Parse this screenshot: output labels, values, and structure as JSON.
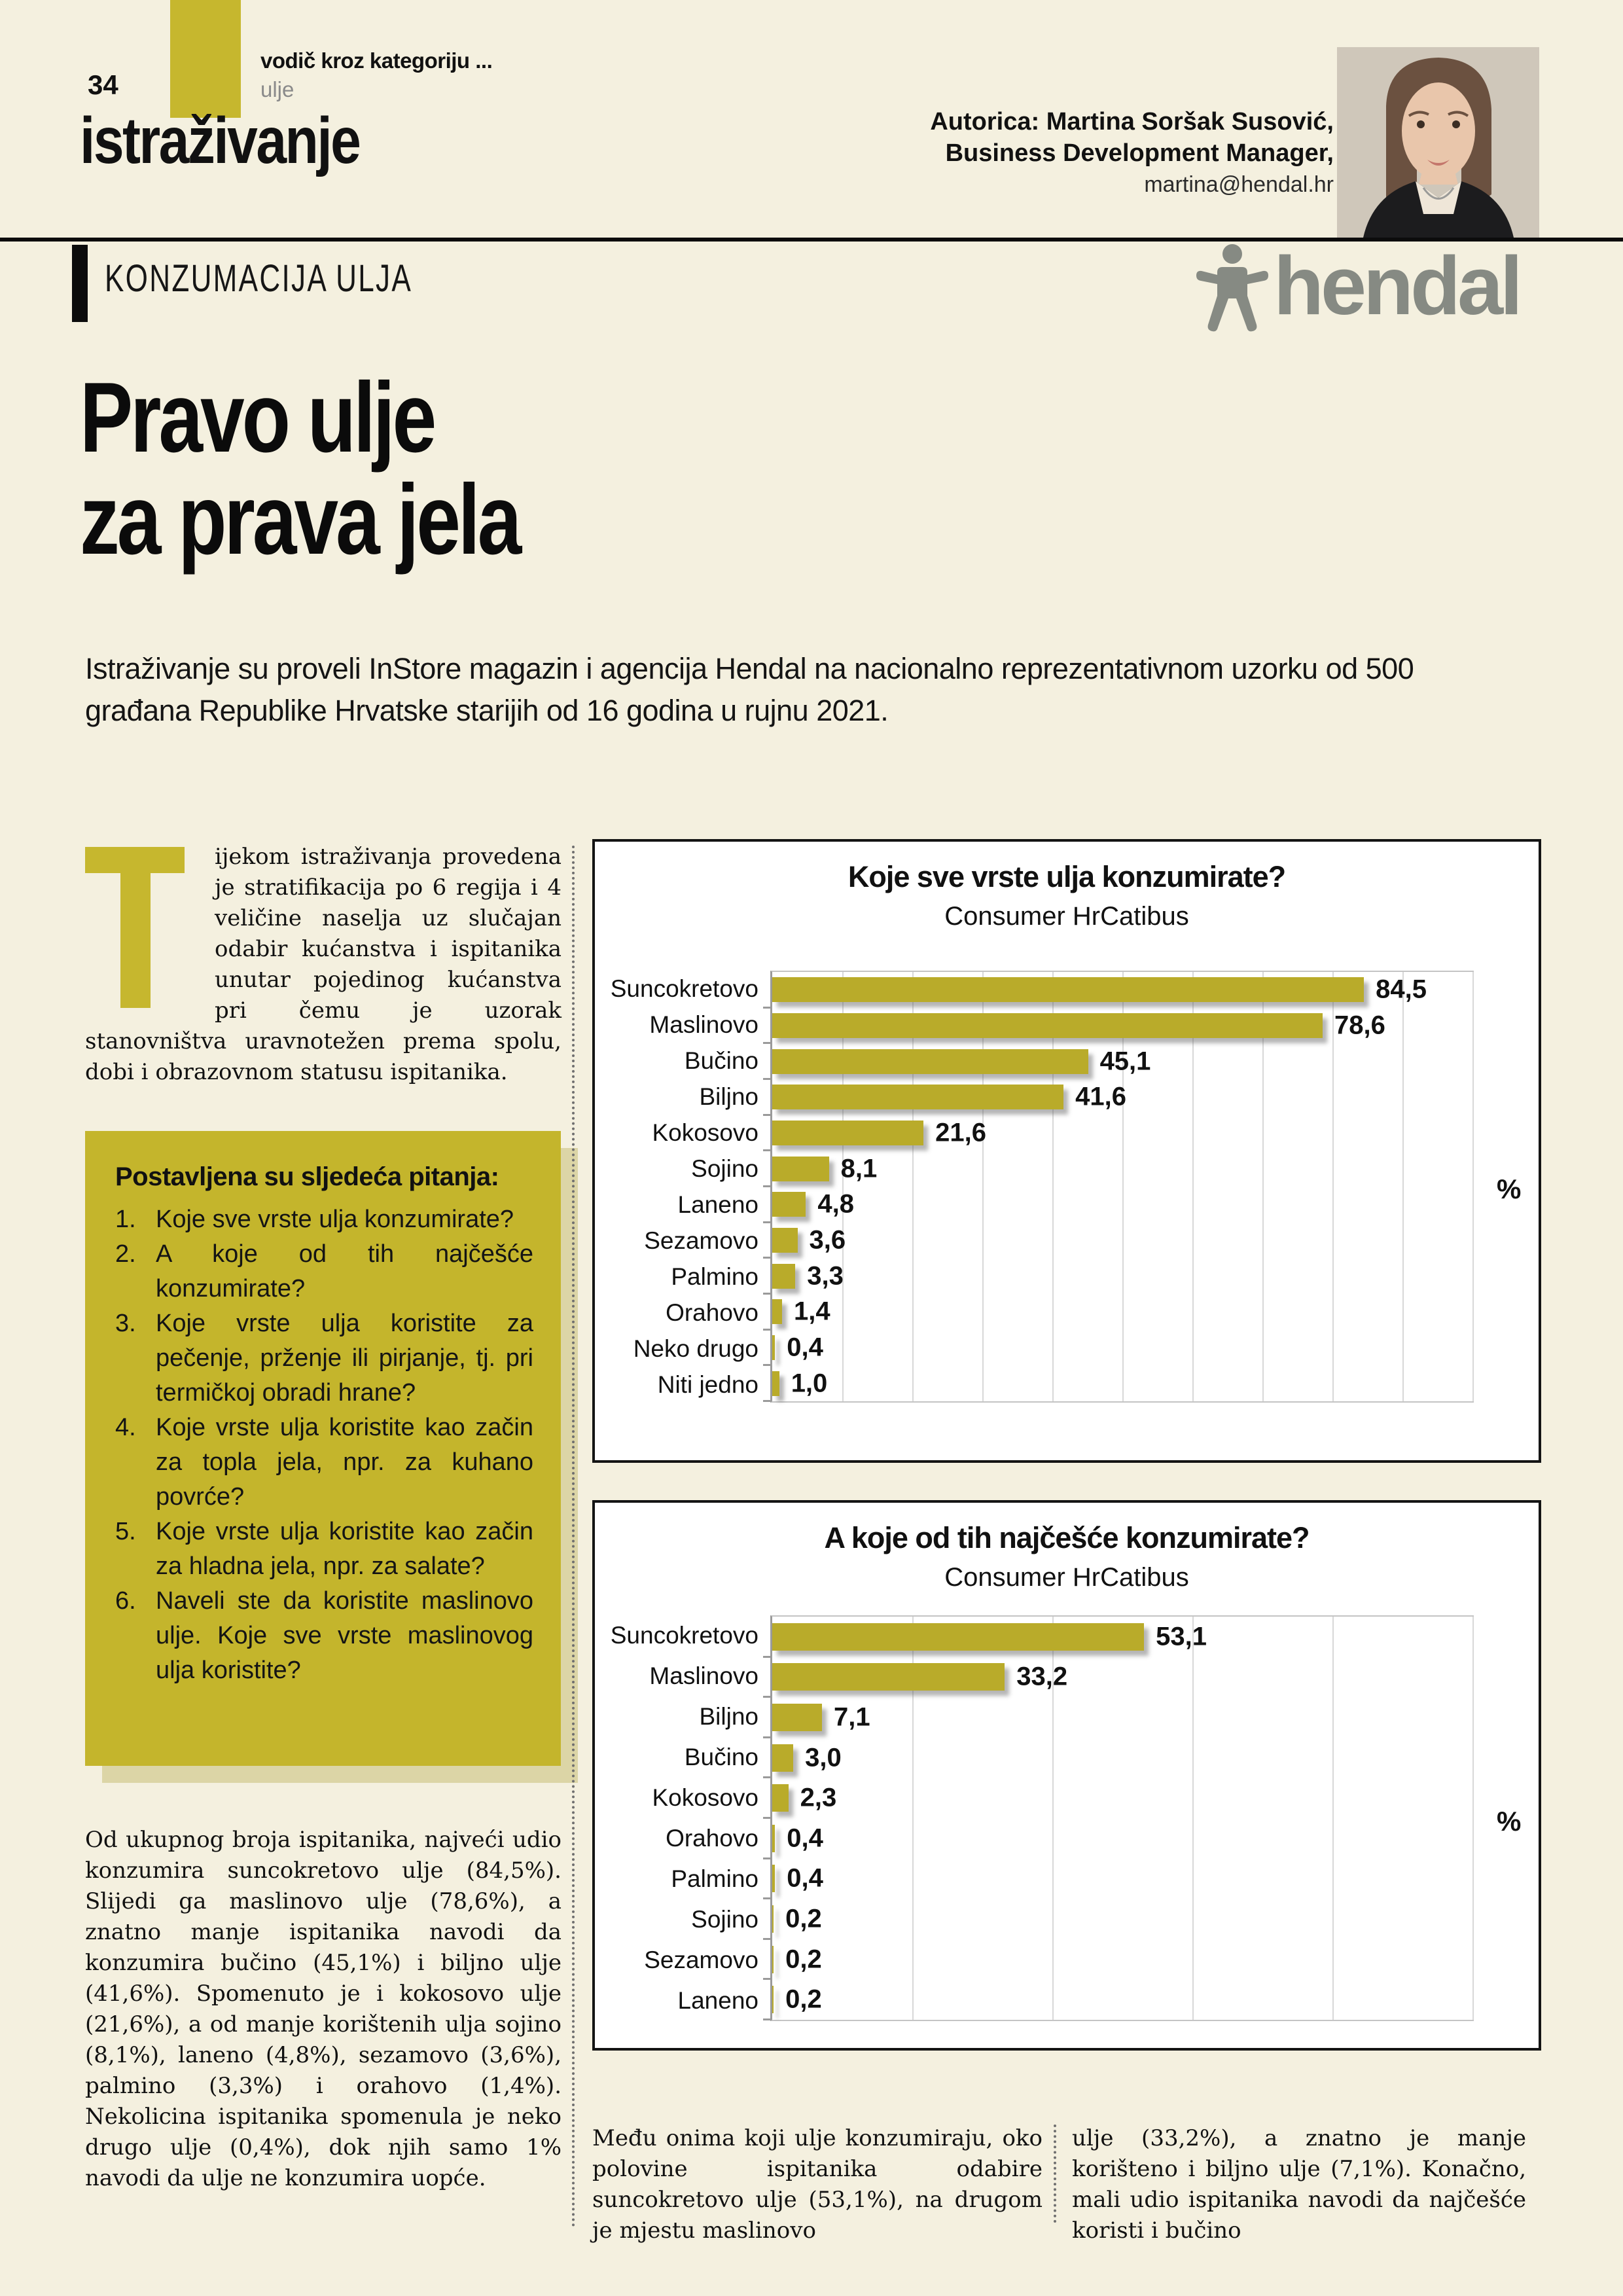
{
  "page": {
    "background": "#f4f0df",
    "accent_yellow": "#c6b72e"
  },
  "header": {
    "page_number": "34",
    "kicker": "vodič kroz kategoriju ...",
    "kicker_sub": "ulje",
    "section_label": "istraživanje",
    "eyebrow": "KONZUMACIJA ULJA",
    "author_line1": "Autorica: Martina Soršak Susović,",
    "author_line2": "Business Development Manager,",
    "author_email": "martina@hendal.hr",
    "logo_text": "hendal"
  },
  "title": {
    "line1": "Pravo ulje",
    "line2": "za prava jela"
  },
  "intro": "Istraživanje su proveli InStore magazin i agencija Hendal na nacionalno reprezentativnom uzorku od 500 građana Republike Hrvatske starijih od 16 godina u rujnu 2021.",
  "article": {
    "dropcap": "T",
    "paragraph1": "ijekom istraživanja provedena je stratifikacija po 6 regija i 4 veličine naselja uz slučajan odabir kućanstva i ispitanika unutar pojedinog kućanstva pri čemu je uzorak stanovništva uravnotežen prema spolu, dobi i obrazovnom statusu ispitanika.",
    "questions_title": "Postavljena su sljedeća pitanja:",
    "questions": [
      {
        "num": "1.",
        "text": "Koje sve vrste ulja konzumirate?"
      },
      {
        "num": "2.",
        "text": "A koje od tih najčešće konzumirate?"
      },
      {
        "num": "3.",
        "text": "Koje vrste ulja koristite za pečenje, prženje ili pirjanje, tj. pri termičkoj obradi hrane?"
      },
      {
        "num": "4.",
        "text": "Koje vrste ulja koristite kao začin za topla jela, npr. za kuhano povrće?"
      },
      {
        "num": "5.",
        "text": "Koje vrste ulja koristite kao začin za hladna jela, npr. za salate?"
      },
      {
        "num": "6.",
        "text": "Naveli ste da koristite maslinovo ulje. Koje sve vrste maslinovog ulja koristite?"
      }
    ],
    "paragraph2": "Od ukupnog broja ispitanika, najveći udio konzumira suncokretovo ulje (84,5%). Slijedi ga maslinovo ulje (78,6%), a znatno manje ispitanika navodi da konzumira bučino (45,1%) i biljno ulje (41,6%). Spomenuto je i kokosovo ulje (21,6%), a od manje korištenih ulja sojino (8,1%), laneno (4,8%), sezamovo (3,6%), palmino (3,3%) i orahovo (1,4%). Nekolicina ispitanika spomenula je neko drugo ulje (0,4%), dok njih samo 1% navodi da ulje ne konzumira uopće.",
    "bottom_left": "Među onima koji ulje konzumiraju, oko polovine ispitanika odabire suncokretovo ulje (53,1%), na drugom je mjestu maslinovo",
    "bottom_right": "ulje (33,2%), a znatno je manje korišteno i biljno ulje (7,1%). Konačno, mali udio ispitanika navodi da najčešće koristi i bučino"
  },
  "chart_data": [
    {
      "type": "bar",
      "orientation": "horizontal",
      "title": "Koje sve vrste ulja konzumirate?",
      "subtitle": "Consumer HrCatibus",
      "unit": "%",
      "xlim": [
        0,
        100
      ],
      "gridline_step": 10,
      "grid": true,
      "legend": false,
      "bar_color": "#b9ab2a",
      "categories": [
        "Suncokretovo",
        "Maslinovo",
        "Bučino",
        "Biljno",
        "Kokosovo",
        "Sojino",
        "Laneno",
        "Sezamovo",
        "Palmino",
        "Orahovo",
        "Neko drugo",
        "Niti jedno"
      ],
      "values": [
        84.5,
        78.6,
        45.1,
        41.6,
        21.6,
        8.1,
        4.8,
        3.6,
        3.3,
        1.4,
        0.4,
        1.0
      ],
      "value_labels": [
        "84,5",
        "78,6",
        "45,1",
        "41,6",
        "21,6",
        "8,1",
        "4,8",
        "3,6",
        "3,3",
        "1,4",
        "0,4",
        "1,0"
      ]
    },
    {
      "type": "bar",
      "orientation": "horizontal",
      "title": "A koje od tih najčešće konzumirate?",
      "subtitle": "Consumer HrCatibus",
      "unit": "%",
      "xlim": [
        0,
        100
      ],
      "gridline_step": 20,
      "grid": true,
      "legend": false,
      "bar_color": "#b9ab2a",
      "categories": [
        "Suncokretovo",
        "Maslinovo",
        "Biljno",
        "Bučino",
        "Kokosovo",
        "Orahovo",
        "Palmino",
        "Sojino",
        "Sezamovo",
        "Laneno"
      ],
      "values": [
        53.1,
        33.2,
        7.1,
        3.0,
        2.3,
        0.4,
        0.4,
        0.2,
        0.2,
        0.2
      ],
      "value_labels": [
        "53,1",
        "33,2",
        "7,1",
        "3,0",
        "2,3",
        "0,4",
        "0,4",
        "0,2",
        "0,2",
        "0,2"
      ]
    }
  ]
}
